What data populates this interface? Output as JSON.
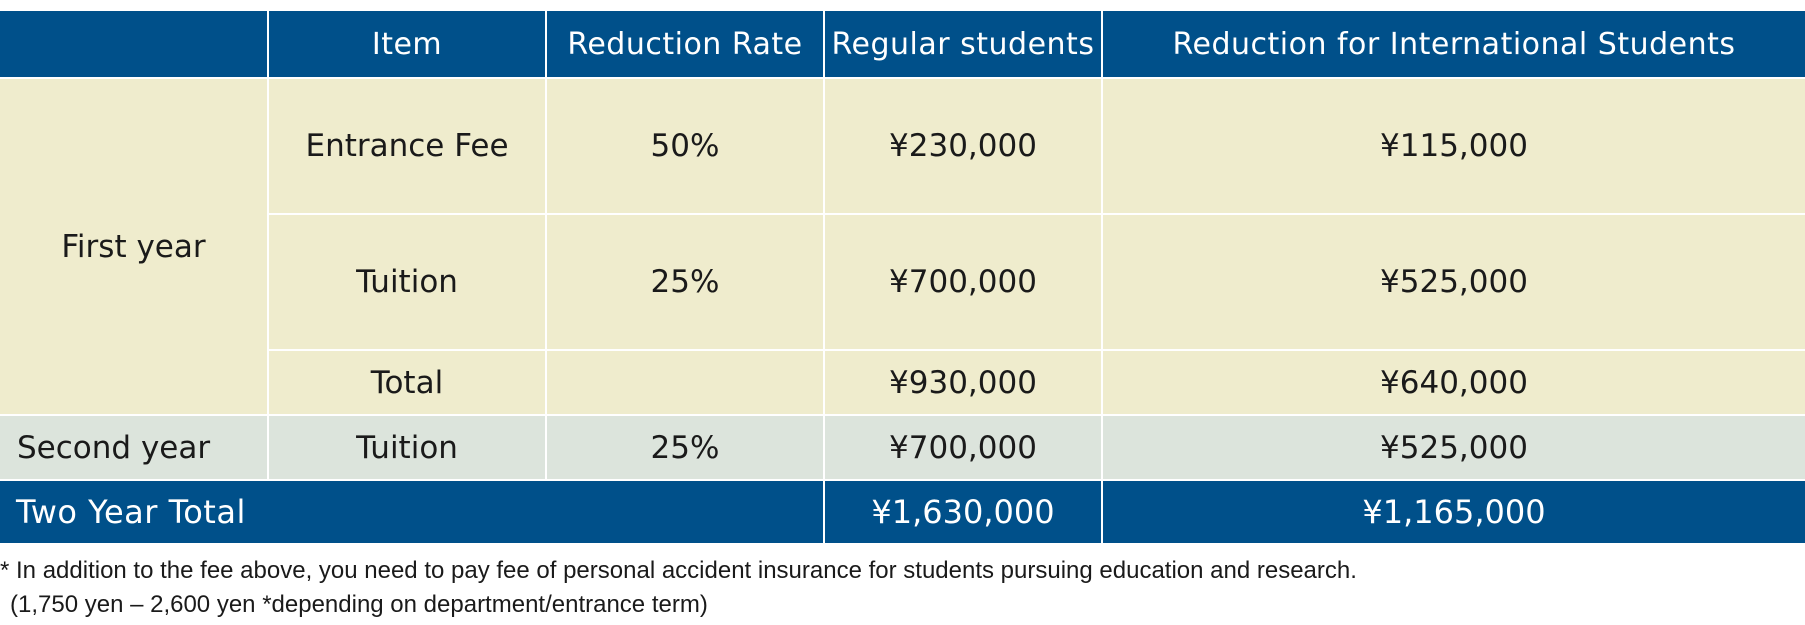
{
  "table": {
    "headers": [
      "",
      "Item",
      "Reduction Rate",
      "Regular students",
      "Reduction for International Students"
    ],
    "first_year": {
      "label": "First year",
      "rows": [
        {
          "item": "Entrance Fee",
          "rate": "50%",
          "regular": "¥230,000",
          "reduced": "¥115,000"
        },
        {
          "item": "Tuition",
          "rate": "25%",
          "regular": "¥700,000",
          "reduced": "¥525,000"
        },
        {
          "item": "Total",
          "rate": "",
          "regular": "¥930,000",
          "reduced": "¥640,000"
        }
      ]
    },
    "second_year": {
      "label": "Second year",
      "item": "Tuition",
      "rate": "25%",
      "regular": "¥700,000",
      "reduced": "¥525,000"
    },
    "two_year_total": {
      "label": "Two Year Total",
      "regular": "¥1,630,000",
      "reduced": "¥1,165,000"
    }
  },
  "notes": {
    "line1": "* In addition to the fee above, you need to pay fee of personal accident insurance for students pursuing education and research.",
    "line2": "(1,750 yen – 2,600 yen *depending on department/entrance term)"
  },
  "colors": {
    "header_blue": "#00508a",
    "first_year_bg": "#efeccd",
    "second_year_bg": "#dce4dc",
    "text": "#1a1a1a"
  }
}
